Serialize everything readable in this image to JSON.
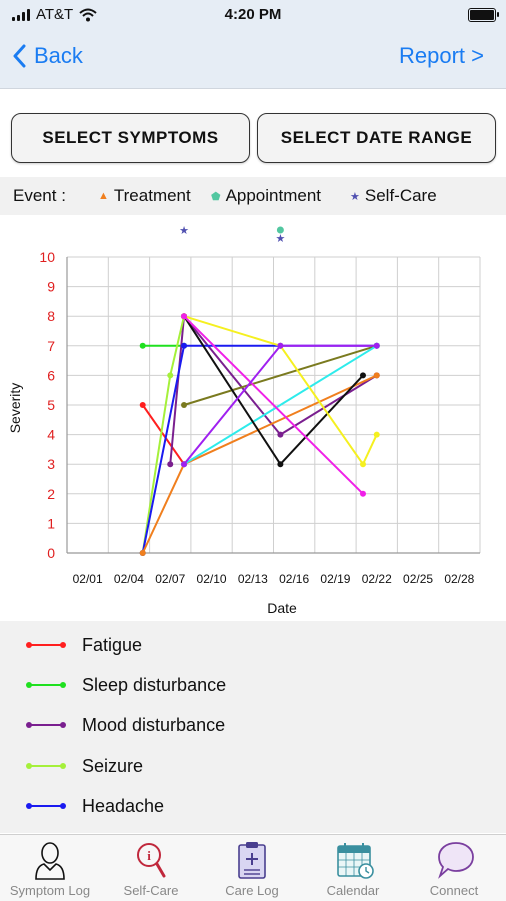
{
  "status_bar": {
    "carrier": "AT&T",
    "time": "4:20 PM"
  },
  "nav": {
    "back_label": "Back",
    "report_label": "Report >"
  },
  "buttons": {
    "select_symptoms": "SELECT SYMPTOMS",
    "select_date_range": "SELECT DATE RANGE"
  },
  "event_legend": {
    "label": "Event :",
    "items": [
      {
        "symbol": "▲",
        "label": "Treatment",
        "color": "#f07f1e"
      },
      {
        "symbol": "⬟",
        "label": "Appointment",
        "color": "#52c7a0"
      },
      {
        "symbol": "★",
        "label": "Self-Care",
        "color": "#5050b0"
      }
    ]
  },
  "chart_data": {
    "type": "line",
    "xlabel": "Date",
    "ylabel": "Severity",
    "x_ticks": [
      "02/01",
      "02/04",
      "02/07",
      "02/10",
      "02/13",
      "02/16",
      "02/19",
      "02/22",
      "02/25",
      "02/28"
    ],
    "ylim": [
      0,
      10
    ],
    "y_ticks": [
      "0",
      "1",
      "2",
      "3",
      "4",
      "5",
      "6",
      "7",
      "8",
      "9",
      "10"
    ],
    "grid": true,
    "events": [
      {
        "type": "Self-Care",
        "x": "02/08",
        "color": "#5050b0"
      },
      {
        "type": "Appointment",
        "x": "02/15",
        "color": "#52c7a0"
      },
      {
        "type": "Self-Care",
        "x": "02/15",
        "color": "#5050b0"
      }
    ],
    "series": [
      {
        "name": "Fatigue",
        "color": "#ff1f1f",
        "points": [
          [
            "02/05",
            5
          ],
          [
            "02/08",
            3
          ]
        ]
      },
      {
        "name": "Sleep disturbance",
        "color": "#1fe01f",
        "points": [
          [
            "02/05",
            7
          ],
          [
            "02/08",
            7
          ]
        ]
      },
      {
        "name": "Mood disturbance",
        "color": "#7a1f8f",
        "points": [
          [
            "02/07",
            3
          ],
          [
            "02/08",
            8
          ],
          [
            "02/15",
            4
          ],
          [
            "02/22",
            6
          ]
        ]
      },
      {
        "name": "Seizure",
        "color": "#a5f03a",
        "points": [
          [
            "02/05",
            0
          ],
          [
            "02/07",
            6
          ],
          [
            "02/08",
            8
          ]
        ]
      },
      {
        "name": "Headache",
        "color": "#1a1af0",
        "points": [
          [
            "02/05",
            0
          ],
          [
            "02/08",
            7
          ],
          [
            "02/15",
            7
          ],
          [
            "02/22",
            7
          ]
        ]
      },
      {
        "name": "",
        "color": "#f07f1e",
        "points": [
          [
            "02/05",
            0
          ],
          [
            "02/08",
            3
          ],
          [
            "02/22",
            6
          ]
        ]
      },
      {
        "name": "",
        "color": "#7a7a1f",
        "points": [
          [
            "02/08",
            5
          ],
          [
            "02/22",
            7
          ]
        ]
      },
      {
        "name": "",
        "color": "#2eebeb",
        "points": [
          [
            "02/08",
            3
          ],
          [
            "02/22",
            7
          ]
        ]
      },
      {
        "name": "",
        "color": "#111111",
        "points": [
          [
            "02/08",
            8
          ],
          [
            "02/15",
            3
          ],
          [
            "02/21",
            6
          ]
        ]
      },
      {
        "name": "",
        "color": "#f5f020",
        "points": [
          [
            "02/08",
            8
          ],
          [
            "02/15",
            7
          ],
          [
            "02/21",
            3
          ],
          [
            "02/22",
            4
          ]
        ]
      },
      {
        "name": "",
        "color": "#f020e8",
        "points": [
          [
            "02/08",
            8
          ],
          [
            "02/21",
            2
          ]
        ]
      },
      {
        "name": "",
        "color": "#a020f0",
        "points": [
          [
            "02/08",
            3
          ],
          [
            "02/15",
            7
          ],
          [
            "02/22",
            7
          ]
        ]
      }
    ]
  },
  "legend": [
    {
      "label": "Fatigue",
      "color": "#ff1f1f"
    },
    {
      "label": "Sleep disturbance",
      "color": "#1fe01f"
    },
    {
      "label": "Mood disturbance",
      "color": "#7a1f8f"
    },
    {
      "label": "Seizure",
      "color": "#a5f03a"
    },
    {
      "label": "Headache",
      "color": "#1a1af0"
    }
  ],
  "tabs": [
    {
      "label": "Symptom Log",
      "icon": "person-icon"
    },
    {
      "label": "Self-Care",
      "icon": "magnifier-info-icon"
    },
    {
      "label": "Care Log",
      "icon": "clipboard-icon"
    },
    {
      "label": "Calendar",
      "icon": "calendar-icon"
    },
    {
      "label": "Connect",
      "icon": "chat-bubble-icon"
    }
  ]
}
